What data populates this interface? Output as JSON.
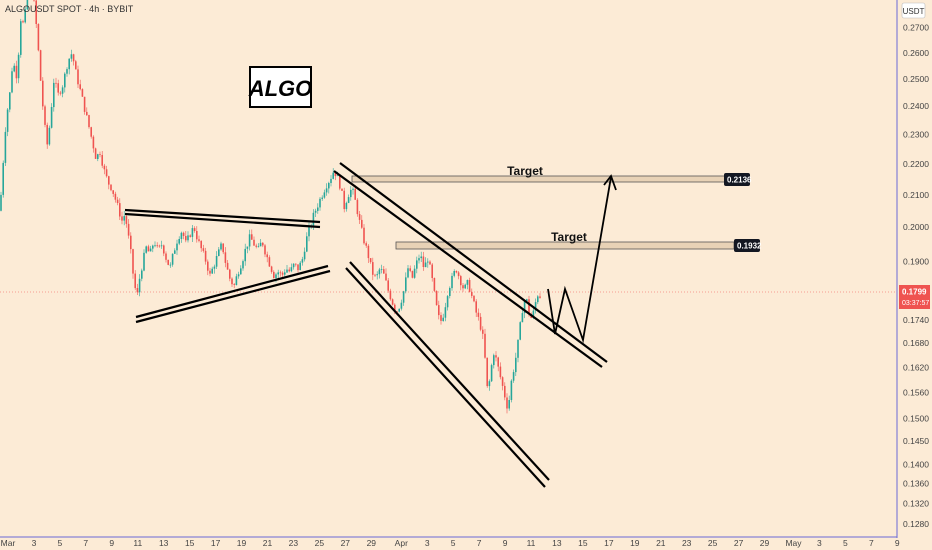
{
  "header": {
    "symbol": "ALGOUSDT SPOT · 4h · BYBIT",
    "currency": "USDT"
  },
  "logo": {
    "text": "ALGO"
  },
  "colors": {
    "background": "#fcebd6",
    "up": "#26a69a",
    "down": "#ef5350",
    "price_line": "#ef5350",
    "target_zone": "#e8d2b6",
    "tag": "#131722"
  },
  "chart_data": {
    "type": "candlestick",
    "y_axis": {
      "scale": "log",
      "range": [
        0.1255,
        0.2815
      ],
      "ticks": [
        "0.2700",
        "0.2600",
        "0.2500",
        "0.2400",
        "0.2300",
        "0.2200",
        "0.2100",
        "0.2000",
        "0.1900",
        "0.1800",
        "0.1740",
        "0.1680",
        "0.1620",
        "0.1560",
        "0.1500",
        "0.1450",
        "0.1400",
        "0.1360",
        "0.1320",
        "0.1280"
      ]
    },
    "x_axis": {
      "ticks": [
        "Mar",
        "3",
        "5",
        "7",
        "9",
        "11",
        "13",
        "15",
        "17",
        "19",
        "21",
        "23",
        "25",
        "27",
        "29",
        "Apr",
        "3",
        "5",
        "7",
        "9",
        "11",
        "13",
        "15",
        "17",
        "19",
        "21",
        "23",
        "25",
        "27",
        "29",
        "May",
        "3",
        "5",
        "7",
        "9"
      ]
    },
    "price_path": [
      [
        0,
        0.205
      ],
      [
        2,
        0.215
      ],
      [
        6,
        0.235
      ],
      [
        10,
        0.245
      ],
      [
        13,
        0.258
      ],
      [
        16,
        0.25
      ],
      [
        19,
        0.262
      ],
      [
        21,
        0.275
      ],
      [
        24,
        0.27
      ],
      [
        27,
        0.285
      ],
      [
        30,
        0.29
      ],
      [
        34,
        0.28
      ],
      [
        37,
        0.268
      ],
      [
        40,
        0.252
      ],
      [
        44,
        0.235
      ],
      [
        47,
        0.226
      ],
      [
        50,
        0.234
      ],
      [
        54,
        0.25
      ],
      [
        58,
        0.244
      ],
      [
        63,
        0.248
      ],
      [
        68,
        0.257
      ],
      [
        72,
        0.26
      ],
      [
        76,
        0.252
      ],
      [
        80,
        0.246
      ],
      [
        84,
        0.24
      ],
      [
        88,
        0.234
      ],
      [
        92,
        0.228
      ],
      [
        96,
        0.222
      ],
      [
        100,
        0.224
      ],
      [
        104,
        0.218
      ],
      [
        108,
        0.214
      ],
      [
        112,
        0.212
      ],
      [
        116,
        0.208
      ],
      [
        119,
        0.205
      ],
      [
        122,
        0.202
      ],
      [
        125,
        0.204
      ],
      [
        128,
        0.198
      ],
      [
        131,
        0.192
      ],
      [
        134,
        0.184
      ],
      [
        137,
        0.18
      ],
      [
        140,
        0.186
      ],
      [
        143,
        0.19
      ],
      [
        146,
        0.194
      ],
      [
        150,
        0.192
      ],
      [
        154,
        0.196
      ],
      [
        158,
        0.193
      ],
      [
        162,
        0.195
      ],
      [
        166,
        0.191
      ],
      [
        170,
        0.188
      ],
      [
        174,
        0.193
      ],
      [
        178,
        0.197
      ],
      [
        182,
        0.199
      ],
      [
        186,
        0.195
      ],
      [
        190,
        0.198
      ],
      [
        194,
        0.2
      ],
      [
        198,
        0.196
      ],
      [
        202,
        0.193
      ],
      [
        206,
        0.19
      ],
      [
        210,
        0.186
      ],
      [
        214,
        0.189
      ],
      [
        218,
        0.192
      ],
      [
        222,
        0.195
      ],
      [
        226,
        0.189
      ],
      [
        230,
        0.185
      ],
      [
        234,
        0.183
      ],
      [
        238,
        0.187
      ],
      [
        242,
        0.19
      ],
      [
        246,
        0.194
      ],
      [
        250,
        0.197
      ],
      [
        254,
        0.195
      ],
      [
        258,
        0.193
      ],
      [
        262,
        0.196
      ],
      [
        266,
        0.192
      ],
      [
        270,
        0.189
      ],
      [
        274,
        0.186
      ],
      [
        278,
        0.187
      ],
      [
        282,
        0.186
      ],
      [
        286,
        0.188
      ],
      [
        290,
        0.187
      ],
      [
        294,
        0.189
      ],
      [
        298,
        0.188
      ],
      [
        302,
        0.19
      ],
      [
        306,
        0.196
      ],
      [
        310,
        0.2
      ],
      [
        314,
        0.204
      ],
      [
        318,
        0.207
      ],
      [
        322,
        0.21
      ],
      [
        326,
        0.213
      ],
      [
        330,
        0.215
      ],
      [
        334,
        0.218
      ],
      [
        338,
        0.215
      ],
      [
        341,
        0.212
      ],
      [
        344,
        0.206
      ],
      [
        348,
        0.21
      ],
      [
        352,
        0.212
      ],
      [
        356,
        0.207
      ],
      [
        360,
        0.201
      ],
      [
        364,
        0.196
      ],
      [
        368,
        0.192
      ],
      [
        372,
        0.187
      ],
      [
        376,
        0.185
      ],
      [
        380,
        0.188
      ],
      [
        384,
        0.186
      ],
      [
        388,
        0.182
      ],
      [
        392,
        0.179
      ],
      [
        396,
        0.176
      ],
      [
        400,
        0.178
      ],
      [
        404,
        0.182
      ],
      [
        408,
        0.188
      ],
      [
        412,
        0.185
      ],
      [
        416,
        0.189
      ],
      [
        420,
        0.192
      ],
      [
        424,
        0.188
      ],
      [
        428,
        0.191
      ],
      [
        432,
        0.185
      ],
      [
        436,
        0.178
      ],
      [
        440,
        0.173
      ],
      [
        444,
        0.176
      ],
      [
        448,
        0.182
      ],
      [
        452,
        0.185
      ],
      [
        456,
        0.188
      ],
      [
        460,
        0.185
      ],
      [
        464,
        0.182
      ],
      [
        468,
        0.184
      ],
      [
        472,
        0.18
      ],
      [
        476,
        0.176
      ],
      [
        480,
        0.173
      ],
      [
        484,
        0.168
      ],
      [
        486,
        0.16
      ],
      [
        488,
        0.155
      ],
      [
        490,
        0.16
      ],
      [
        494,
        0.166
      ],
      [
        498,
        0.162
      ],
      [
        502,
        0.158
      ],
      [
        505,
        0.155
      ],
      [
        508,
        0.152
      ],
      [
        511,
        0.158
      ],
      [
        514,
        0.162
      ],
      [
        517,
        0.166
      ],
      [
        520,
        0.172
      ],
      [
        523,
        0.178
      ],
      [
        526,
        0.18
      ],
      [
        529,
        0.176
      ],
      [
        532,
        0.174
      ],
      [
        535,
        0.178
      ],
      [
        538,
        0.181
      ],
      [
        541,
        0.18
      ]
    ],
    "support_resistance": [
      {
        "label": "Target",
        "price": 0.2136,
        "price_label": "0.2136"
      },
      {
        "label": "Target",
        "price": 0.1932,
        "price_label": "0.1932"
      }
    ],
    "last_price": {
      "value": "0.1799",
      "countdown": "03:37:57"
    }
  }
}
